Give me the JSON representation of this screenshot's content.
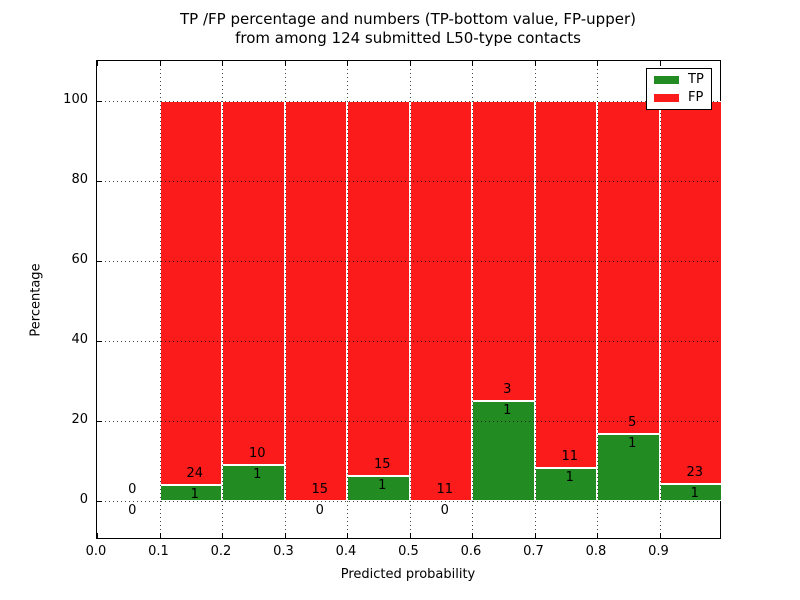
{
  "figure": {
    "title_line1": "TP /FP percentage and numbers (TP-bottom value, FP-upper)",
    "title_line2": "from among 124 submitted L50-type contacts"
  },
  "chart_data": {
    "type": "bar",
    "subtype": "stacked-percentage-histogram",
    "title": "TP /FP percentage and numbers (TP-bottom value, FP-upper) from among 124 submitted L50-type contacts",
    "total_submitted_contacts": 124,
    "xlabel": "Predicted probability",
    "ylabel": "Percentage",
    "xlim": [
      0.0,
      1.0
    ],
    "ylim": [
      -9.75,
      110
    ],
    "xticks": [
      "0.0",
      "0.1",
      "0.2",
      "0.3",
      "0.4",
      "0.5",
      "0.6",
      "0.7",
      "0.8",
      "0.9"
    ],
    "yticks": [
      0,
      20,
      40,
      60,
      80,
      100
    ],
    "grid": "dotted, both axes",
    "legend": {
      "position": "upper right",
      "entries": [
        {
          "label": "TP",
          "color": "#228B22"
        },
        {
          "label": "FP",
          "color": "#FB1B1B"
        }
      ]
    },
    "colors": {
      "tp": "#228B22",
      "fp": "#FB1B1B",
      "bar_edge": "#ffffff",
      "text": "#000000"
    },
    "annotation_rule": "TP count shown below green bar top, FP count shown above green bar top",
    "bins": [
      {
        "range": [
          0.0,
          0.1
        ],
        "tp": 0,
        "fp": 0,
        "tp_pct": 0,
        "fp_pct": 0
      },
      {
        "range": [
          0.1,
          0.2
        ],
        "tp": 1,
        "fp": 24,
        "tp_pct": 4.0,
        "fp_pct": 96.0
      },
      {
        "range": [
          0.2,
          0.3
        ],
        "tp": 1,
        "fp": 10,
        "tp_pct": 9.09,
        "fp_pct": 90.91
      },
      {
        "range": [
          0.3,
          0.4
        ],
        "tp": 0,
        "fp": 15,
        "tp_pct": 0,
        "fp_pct": 100
      },
      {
        "range": [
          0.4,
          0.5
        ],
        "tp": 1,
        "fp": 15,
        "tp_pct": 6.25,
        "fp_pct": 93.75
      },
      {
        "range": [
          0.5,
          0.6
        ],
        "tp": 0,
        "fp": 11,
        "tp_pct": 0,
        "fp_pct": 100
      },
      {
        "range": [
          0.6,
          0.7
        ],
        "tp": 1,
        "fp": 3,
        "tp_pct": 25.0,
        "fp_pct": 75.0
      },
      {
        "range": [
          0.7,
          0.8
        ],
        "tp": 1,
        "fp": 11,
        "tp_pct": 8.33,
        "fp_pct": 91.67
      },
      {
        "range": [
          0.8,
          0.9
        ],
        "tp": 1,
        "fp": 5,
        "tp_pct": 16.67,
        "fp_pct": 83.33
      },
      {
        "range": [
          0.9,
          1.0
        ],
        "tp": 1,
        "fp": 23,
        "tp_pct": 4.17,
        "fp_pct": 95.83
      }
    ]
  }
}
